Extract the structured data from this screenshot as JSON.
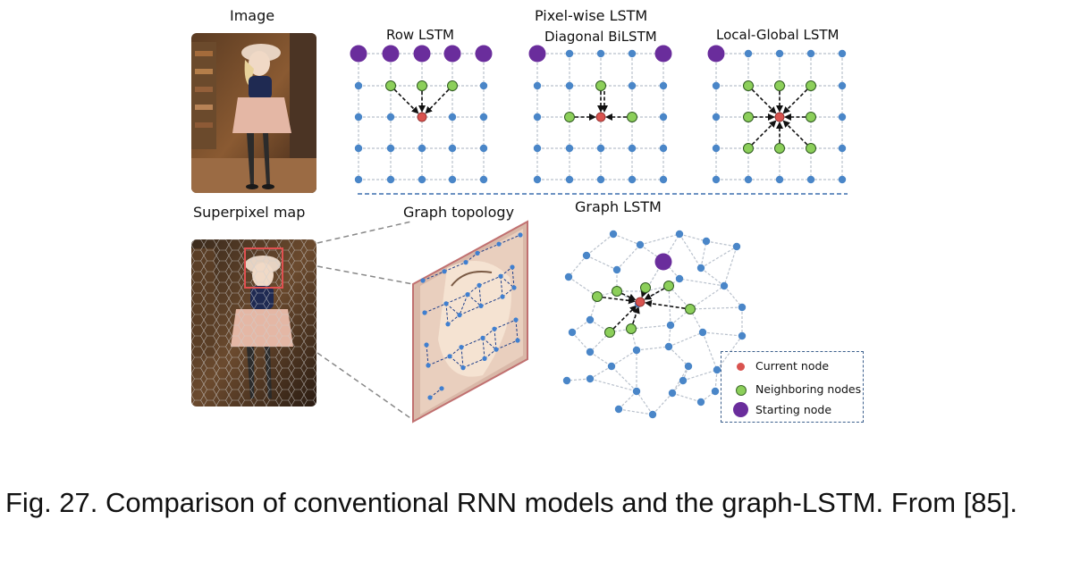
{
  "labels": {
    "image": "Image",
    "superpixel_map": "Superpixel map",
    "pixel_wise_lstm": "Pixel-wise LSTM",
    "row_lstm": "Row LSTM",
    "diagonal_bilstm": "Diagonal BiLSTM",
    "local_global_lstm": "Local-Global LSTM",
    "graph_topology": "Graph topology",
    "graph_lstm": "Graph LSTM"
  },
  "legend": {
    "current_node": "Current node",
    "neighboring_nodes": "Neighboring nodes",
    "starting_node": "Starting node"
  },
  "colors": {
    "node": "#4a86c8",
    "current": "#d9534f",
    "neighbor": "#8ccf5a",
    "start": "#6a2d9c",
    "grid": "#b9c1cc",
    "divider": "#3c6fae"
  },
  "caption": "Fig. 27. Comparison of conventional RNN models and the graph-LSTM. From [85]."
}
